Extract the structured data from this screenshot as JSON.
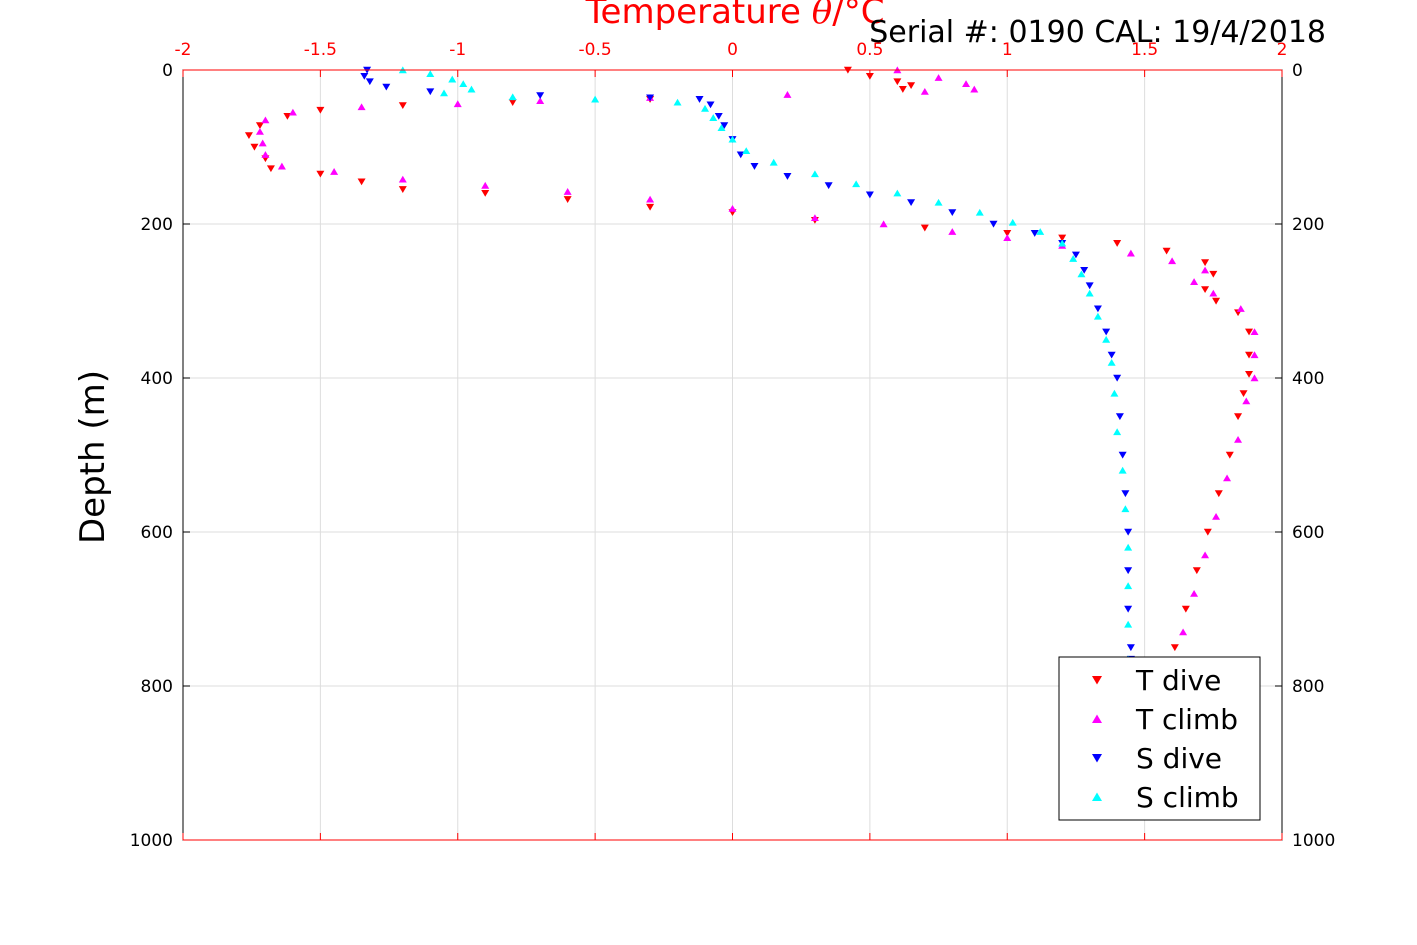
{
  "chart_data": {
    "type": "scatter",
    "title_prefix": "Temperature ",
    "title_theta": "θ",
    "title_suffix": "/°C",
    "annotation": "Serial #: 0190  CAL: 19/4/2018",
    "ylabel": "Depth (m)",
    "xlim": [
      -2,
      2
    ],
    "ylim": [
      0,
      1000
    ],
    "y_reversed": true,
    "grid": true,
    "x_ticks": [
      "-2",
      "-1.5",
      "-1",
      "-0.5",
      "0",
      "0.5",
      "1",
      "1.5",
      "2"
    ],
    "y_ticks": [
      "0",
      "200",
      "400",
      "600",
      "800",
      "1000"
    ],
    "legend_position": "bottom-right",
    "colors": {
      "axis": "#ff0000",
      "grid": "#dddddd"
    },
    "series": [
      {
        "name": "T dive",
        "marker": "triangle-down",
        "color": "#ff0000",
        "points": [
          [
            0.42,
            0
          ],
          [
            0.5,
            8
          ],
          [
            0.6,
            15
          ],
          [
            0.65,
            20
          ],
          [
            0.62,
            25
          ],
          [
            -0.3,
            38
          ],
          [
            -0.8,
            42
          ],
          [
            -1.2,
            46
          ],
          [
            -1.5,
            52
          ],
          [
            -1.62,
            60
          ],
          [
            -1.72,
            72
          ],
          [
            -1.76,
            85
          ],
          [
            -1.74,
            100
          ],
          [
            -1.7,
            115
          ],
          [
            -1.68,
            128
          ],
          [
            -1.5,
            135
          ],
          [
            -1.35,
            145
          ],
          [
            -1.2,
            155
          ],
          [
            -0.9,
            160
          ],
          [
            -0.6,
            168
          ],
          [
            -0.3,
            178
          ],
          [
            0.0,
            185
          ],
          [
            0.3,
            195
          ],
          [
            0.7,
            205
          ],
          [
            1.0,
            212
          ],
          [
            1.2,
            218
          ],
          [
            1.4,
            225
          ],
          [
            1.58,
            235
          ],
          [
            1.72,
            250
          ],
          [
            1.75,
            265
          ],
          [
            1.72,
            285
          ],
          [
            1.76,
            300
          ],
          [
            1.84,
            315
          ],
          [
            1.88,
            340
          ],
          [
            1.88,
            370
          ],
          [
            1.88,
            395
          ],
          [
            1.86,
            420
          ],
          [
            1.84,
            450
          ],
          [
            1.81,
            500
          ],
          [
            1.77,
            550
          ],
          [
            1.73,
            600
          ],
          [
            1.69,
            650
          ],
          [
            1.65,
            700
          ],
          [
            1.61,
            750
          ],
          [
            1.58,
            770
          ]
        ]
      },
      {
        "name": "T climb",
        "marker": "triangle-up",
        "color": "#ff00ff",
        "points": [
          [
            0.6,
            0
          ],
          [
            0.75,
            10
          ],
          [
            0.85,
            18
          ],
          [
            0.88,
            25
          ],
          [
            0.7,
            28
          ],
          [
            0.2,
            32
          ],
          [
            -0.3,
            36
          ],
          [
            -0.7,
            40
          ],
          [
            -1.0,
            44
          ],
          [
            -1.35,
            48
          ],
          [
            -1.6,
            55
          ],
          [
            -1.7,
            65
          ],
          [
            -1.72,
            80
          ],
          [
            -1.71,
            95
          ],
          [
            -1.7,
            110
          ],
          [
            -1.64,
            125
          ],
          [
            -1.45,
            132
          ],
          [
            -1.2,
            142
          ],
          [
            -0.9,
            150
          ],
          [
            -0.6,
            158
          ],
          [
            -0.3,
            168
          ],
          [
            0.0,
            180
          ],
          [
            0.3,
            192
          ],
          [
            0.55,
            200
          ],
          [
            0.8,
            210
          ],
          [
            1.0,
            218
          ],
          [
            1.2,
            228
          ],
          [
            1.45,
            238
          ],
          [
            1.6,
            248
          ],
          [
            1.72,
            260
          ],
          [
            1.68,
            275
          ],
          [
            1.75,
            290
          ],
          [
            1.85,
            310
          ],
          [
            1.9,
            340
          ],
          [
            1.9,
            370
          ],
          [
            1.9,
            400
          ],
          [
            1.87,
            430
          ],
          [
            1.84,
            480
          ],
          [
            1.8,
            530
          ],
          [
            1.76,
            580
          ],
          [
            1.72,
            630
          ],
          [
            1.68,
            680
          ],
          [
            1.64,
            730
          ],
          [
            1.6,
            770
          ]
        ]
      },
      {
        "name": "S dive",
        "marker": "triangle-down",
        "color": "#0000ff",
        "points": [
          [
            -1.33,
            0
          ],
          [
            -1.34,
            8
          ],
          [
            -1.32,
            15
          ],
          [
            -1.26,
            22
          ],
          [
            -1.1,
            28
          ],
          [
            -0.7,
            33
          ],
          [
            -0.3,
            36
          ],
          [
            -0.12,
            38
          ],
          [
            -0.08,
            45
          ],
          [
            -0.05,
            60
          ],
          [
            -0.03,
            72
          ],
          [
            0.0,
            90
          ],
          [
            0.03,
            110
          ],
          [
            0.08,
            125
          ],
          [
            0.2,
            138
          ],
          [
            0.35,
            150
          ],
          [
            0.5,
            162
          ],
          [
            0.65,
            172
          ],
          [
            0.8,
            185
          ],
          [
            0.95,
            200
          ],
          [
            1.1,
            212
          ],
          [
            1.2,
            225
          ],
          [
            1.25,
            240
          ],
          [
            1.28,
            260
          ],
          [
            1.3,
            280
          ],
          [
            1.33,
            310
          ],
          [
            1.36,
            340
          ],
          [
            1.38,
            370
          ],
          [
            1.4,
            400
          ],
          [
            1.41,
            450
          ],
          [
            1.42,
            500
          ],
          [
            1.43,
            550
          ],
          [
            1.44,
            600
          ],
          [
            1.44,
            650
          ],
          [
            1.44,
            700
          ],
          [
            1.45,
            750
          ],
          [
            1.45,
            765
          ]
        ]
      },
      {
        "name": "S climb",
        "marker": "triangle-up",
        "color": "#00ffff",
        "points": [
          [
            -1.2,
            0
          ],
          [
            -1.1,
            5
          ],
          [
            -1.02,
            12
          ],
          [
            -0.98,
            18
          ],
          [
            -0.95,
            25
          ],
          [
            -1.05,
            30
          ],
          [
            -0.8,
            35
          ],
          [
            -0.5,
            38
          ],
          [
            -0.2,
            42
          ],
          [
            -0.1,
            50
          ],
          [
            -0.07,
            62
          ],
          [
            -0.04,
            75
          ],
          [
            0.0,
            90
          ],
          [
            0.05,
            105
          ],
          [
            0.15,
            120
          ],
          [
            0.3,
            135
          ],
          [
            0.45,
            148
          ],
          [
            0.6,
            160
          ],
          [
            0.75,
            172
          ],
          [
            0.9,
            185
          ],
          [
            1.02,
            198
          ],
          [
            1.12,
            210
          ],
          [
            1.2,
            225
          ],
          [
            1.24,
            245
          ],
          [
            1.27,
            265
          ],
          [
            1.3,
            290
          ],
          [
            1.33,
            320
          ],
          [
            1.36,
            350
          ],
          [
            1.38,
            380
          ],
          [
            1.39,
            420
          ],
          [
            1.4,
            470
          ],
          [
            1.42,
            520
          ],
          [
            1.43,
            570
          ],
          [
            1.44,
            620
          ],
          [
            1.44,
            670
          ],
          [
            1.44,
            720
          ],
          [
            1.44,
            765
          ]
        ]
      }
    ]
  }
}
